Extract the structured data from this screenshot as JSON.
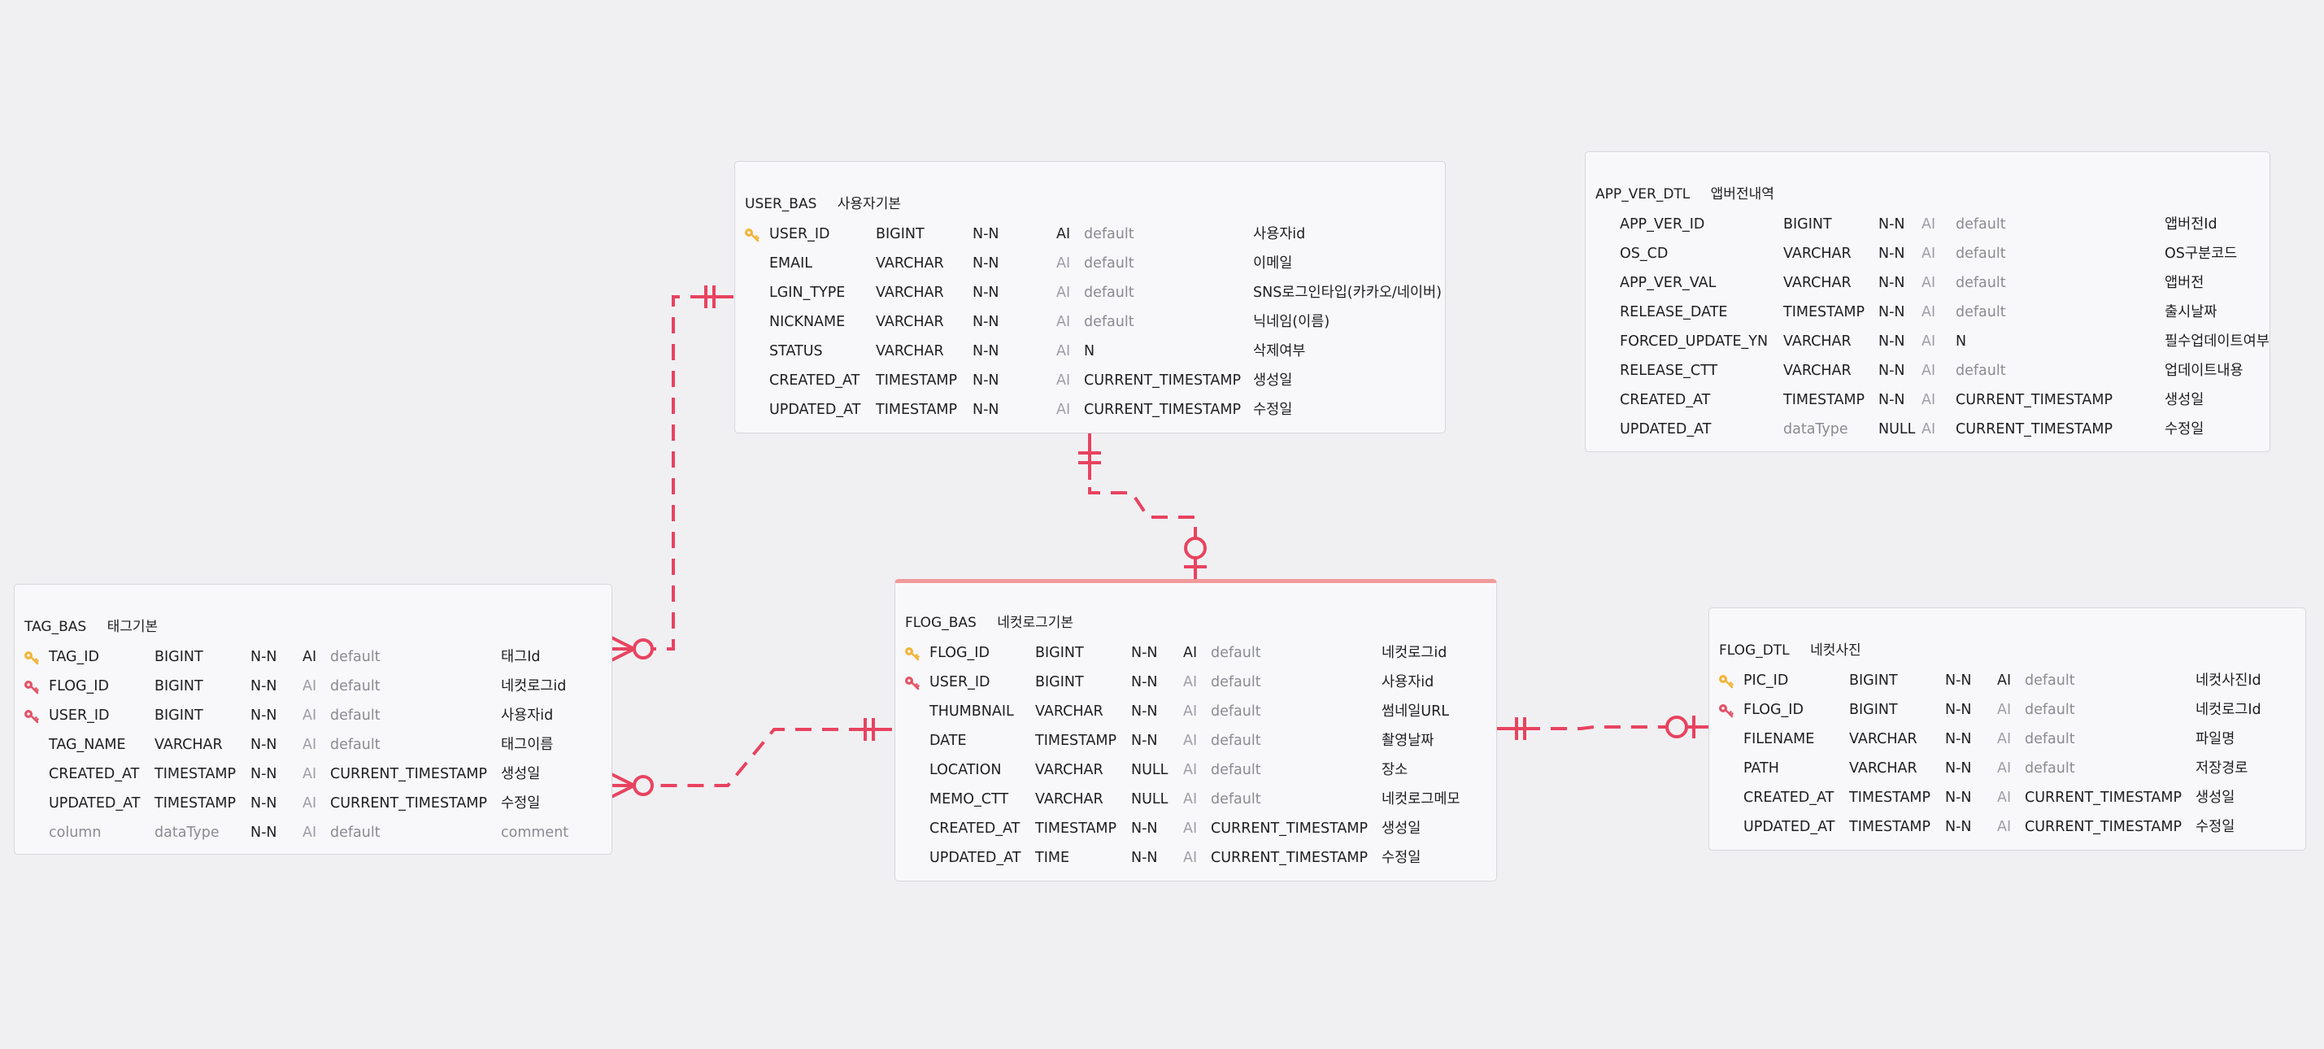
{
  "colors": {
    "background": "#f0f0f3",
    "relation_line": "#e8435f",
    "primary_key": "#f2b53a",
    "foreign_key": "#e35367",
    "selected_border": "#f29a9a"
  },
  "entities": [
    {
      "name": "USER_BAS",
      "comment": "사용자기본",
      "columns": [
        {
          "key": "pk",
          "name": "USER_ID",
          "type": "BIGINT",
          "nn": "N-N",
          "ai": "AI",
          "ai_on": true,
          "default": "default",
          "default_muted": true,
          "comment": "사용자id"
        },
        {
          "key": "",
          "name": "EMAIL",
          "type": "VARCHAR",
          "nn": "N-N",
          "ai": "AI",
          "ai_on": false,
          "default": "default",
          "default_muted": true,
          "comment": "이메일"
        },
        {
          "key": "",
          "name": "LGIN_TYPE",
          "type": "VARCHAR",
          "nn": "N-N",
          "ai": "AI",
          "ai_on": false,
          "default": "default",
          "default_muted": true,
          "comment": "SNS로그인타입(카카오/네이버)"
        },
        {
          "key": "",
          "name": "NICKNAME",
          "type": "VARCHAR",
          "nn": "N-N",
          "ai": "AI",
          "ai_on": false,
          "default": "default",
          "default_muted": true,
          "comment": "닉네임(이름)"
        },
        {
          "key": "",
          "name": "STATUS",
          "type": "VARCHAR",
          "nn": "N-N",
          "ai": "AI",
          "ai_on": false,
          "default": "N",
          "default_muted": false,
          "comment": "삭제여부"
        },
        {
          "key": "",
          "name": "CREATED_AT",
          "type": "TIMESTAMP",
          "nn": "N-N",
          "ai": "AI",
          "ai_on": false,
          "default": "CURRENT_TIMESTAMP",
          "default_muted": false,
          "comment": "생성일"
        },
        {
          "key": "",
          "name": "UPDATED_AT",
          "type": "TIMESTAMP",
          "nn": "N-N",
          "ai": "AI",
          "ai_on": false,
          "default": "CURRENT_TIMESTAMP",
          "default_muted": false,
          "comment": "수정일"
        }
      ]
    },
    {
      "name": "APP_VER_DTL",
      "comment": "앱버전내역",
      "columns": [
        {
          "key": "",
          "name": "APP_VER_ID",
          "type": "BIGINT",
          "nn": "N-N",
          "ai": "AI",
          "ai_on": false,
          "default": "default",
          "default_muted": true,
          "comment": "앱버전Id"
        },
        {
          "key": "",
          "name": "OS_CD",
          "type": "VARCHAR",
          "nn": "N-N",
          "ai": "AI",
          "ai_on": false,
          "default": "default",
          "default_muted": true,
          "comment": "OS구분코드"
        },
        {
          "key": "",
          "name": "APP_VER_VAL",
          "type": "VARCHAR",
          "nn": "N-N",
          "ai": "AI",
          "ai_on": false,
          "default": "default",
          "default_muted": true,
          "comment": "앱버전"
        },
        {
          "key": "",
          "name": "RELEASE_DATE",
          "type": "TIMESTAMP",
          "nn": "N-N",
          "ai": "AI",
          "ai_on": false,
          "default": "default",
          "default_muted": true,
          "comment": "출시날짜"
        },
        {
          "key": "",
          "name": "FORCED_UPDATE_YN",
          "type": "VARCHAR",
          "nn": "N-N",
          "ai": "AI",
          "ai_on": false,
          "default": "N",
          "default_muted": false,
          "comment": "필수업데이트여부"
        },
        {
          "key": "",
          "name": "RELEASE_CTT",
          "type": "VARCHAR",
          "nn": "N-N",
          "ai": "AI",
          "ai_on": false,
          "default": "default",
          "default_muted": true,
          "comment": "업데이트내용"
        },
        {
          "key": "",
          "name": "CREATED_AT",
          "type": "TIMESTAMP",
          "nn": "N-N",
          "ai": "AI",
          "ai_on": false,
          "default": "CURRENT_TIMESTAMP",
          "default_muted": false,
          "comment": "생성일"
        },
        {
          "key": "",
          "name": "UPDATED_AT",
          "type": "dataType",
          "type_muted": true,
          "nn": "NULL",
          "ai": "AI",
          "ai_on": false,
          "default": "CURRENT_TIMESTAMP",
          "default_muted": false,
          "comment": "수정일"
        }
      ]
    },
    {
      "name": "TAG_BAS",
      "comment": "태그기본",
      "columns": [
        {
          "key": "pk",
          "name": "TAG_ID",
          "type": "BIGINT",
          "nn": "N-N",
          "ai": "AI",
          "ai_on": true,
          "default": "default",
          "default_muted": true,
          "comment": "태그Id"
        },
        {
          "key": "fk",
          "name": "FLOG_ID",
          "type": "BIGINT",
          "nn": "N-N",
          "ai": "AI",
          "ai_on": false,
          "default": "default",
          "default_muted": true,
          "comment": "네컷로그id"
        },
        {
          "key": "fk",
          "name": "USER_ID",
          "type": "BIGINT",
          "nn": "N-N",
          "ai": "AI",
          "ai_on": false,
          "default": "default",
          "default_muted": true,
          "comment": "사용자id"
        },
        {
          "key": "",
          "name": "TAG_NAME",
          "type": "VARCHAR",
          "nn": "N-N",
          "ai": "AI",
          "ai_on": false,
          "default": "default",
          "default_muted": true,
          "comment": "태그이름"
        },
        {
          "key": "",
          "name": "CREATED_AT",
          "type": "TIMESTAMP",
          "nn": "N-N",
          "ai": "AI",
          "ai_on": false,
          "default": "CURRENT_TIMESTAMP",
          "default_muted": false,
          "comment": "생성일"
        },
        {
          "key": "",
          "name": "UPDATED_AT",
          "type": "TIMESTAMP",
          "nn": "N-N",
          "ai": "AI",
          "ai_on": false,
          "default": "CURRENT_TIMESTAMP",
          "default_muted": false,
          "comment": "수정일"
        },
        {
          "key": "",
          "name": "column",
          "name_muted": true,
          "type": "dataType",
          "type_muted": true,
          "nn": "N-N",
          "ai": "AI",
          "ai_on": false,
          "default": "default",
          "default_muted": true,
          "comment": "comment",
          "comment_muted": true
        }
      ]
    },
    {
      "name": "FLOG_BAS",
      "comment": "네컷로그기본",
      "selected": true,
      "columns": [
        {
          "key": "pk",
          "name": "FLOG_ID",
          "type": "BIGINT",
          "nn": "N-N",
          "ai": "AI",
          "ai_on": true,
          "default": "default",
          "default_muted": true,
          "comment": "네컷로그id"
        },
        {
          "key": "fk",
          "name": "USER_ID",
          "type": "BIGINT",
          "nn": "N-N",
          "ai": "AI",
          "ai_on": false,
          "default": "default",
          "default_muted": true,
          "comment": "사용자id"
        },
        {
          "key": "",
          "name": "THUMBNAIL",
          "type": "VARCHAR",
          "nn": "N-N",
          "ai": "AI",
          "ai_on": false,
          "default": "default",
          "default_muted": true,
          "comment": "썸네일URL"
        },
        {
          "key": "",
          "name": "DATE",
          "type": "TIMESTAMP",
          "nn": "N-N",
          "ai": "AI",
          "ai_on": false,
          "default": "default",
          "default_muted": true,
          "comment": "촬영날짜"
        },
        {
          "key": "",
          "name": "LOCATION",
          "type": "VARCHAR",
          "nn": "NULL",
          "ai": "AI",
          "ai_on": false,
          "default": "default",
          "default_muted": true,
          "comment": "장소"
        },
        {
          "key": "",
          "name": "MEMO_CTT",
          "type": "VARCHAR",
          "nn": "NULL",
          "ai": "AI",
          "ai_on": false,
          "default": "default",
          "default_muted": true,
          "comment": "네컷로그메모"
        },
        {
          "key": "",
          "name": "CREATED_AT",
          "type": "TIMESTAMP",
          "nn": "N-N",
          "ai": "AI",
          "ai_on": false,
          "default": "CURRENT_TIMESTAMP",
          "default_muted": false,
          "comment": "생성일"
        },
        {
          "key": "",
          "name": "UPDATED_AT",
          "type": "TIME",
          "nn": "N-N",
          "ai": "AI",
          "ai_on": false,
          "default": "CURRENT_TIMESTAMP",
          "default_muted": false,
          "comment": "수정일"
        }
      ]
    },
    {
      "name": "FLOG_DTL",
      "comment": "네컷사진",
      "columns": [
        {
          "key": "pk",
          "name": "PIC_ID",
          "type": "BIGINT",
          "nn": "N-N",
          "ai": "AI",
          "ai_on": true,
          "default": "default",
          "default_muted": true,
          "comment": "네컷사진Id"
        },
        {
          "key": "fk",
          "name": "FLOG_ID",
          "type": "BIGINT",
          "nn": "N-N",
          "ai": "AI",
          "ai_on": false,
          "default": "default",
          "default_muted": true,
          "comment": "네컷로그Id"
        },
        {
          "key": "",
          "name": "FILENAME",
          "type": "VARCHAR",
          "nn": "N-N",
          "ai": "AI",
          "ai_on": false,
          "default": "default",
          "default_muted": true,
          "comment": "파일명"
        },
        {
          "key": "",
          "name": "PATH",
          "type": "VARCHAR",
          "nn": "N-N",
          "ai": "AI",
          "ai_on": false,
          "default": "default",
          "default_muted": true,
          "comment": "저장경로"
        },
        {
          "key": "",
          "name": "CREATED_AT",
          "type": "TIMESTAMP",
          "nn": "N-N",
          "ai": "AI",
          "ai_on": false,
          "default": "CURRENT_TIMESTAMP",
          "default_muted": false,
          "comment": "생성일"
        },
        {
          "key": "",
          "name": "UPDATED_AT",
          "type": "TIMESTAMP",
          "nn": "N-N",
          "ai": "AI",
          "ai_on": false,
          "default": "CURRENT_TIMESTAMP",
          "default_muted": false,
          "comment": "수정일"
        }
      ]
    }
  ],
  "relationships": [
    {
      "from": "USER_BAS",
      "from_end": "exactly-one",
      "to": "TAG_BAS",
      "to_end": "zero-or-many"
    },
    {
      "from": "USER_BAS",
      "from_end": "exactly-one",
      "to": "FLOG_BAS",
      "to_end": "zero-or-one"
    },
    {
      "from": "FLOG_BAS",
      "from_end": "exactly-one",
      "to": "TAG_BAS",
      "to_end": "zero-or-many"
    },
    {
      "from": "FLOG_BAS",
      "from_end": "exactly-one",
      "to": "FLOG_DTL",
      "to_end": "zero-or-one"
    }
  ]
}
